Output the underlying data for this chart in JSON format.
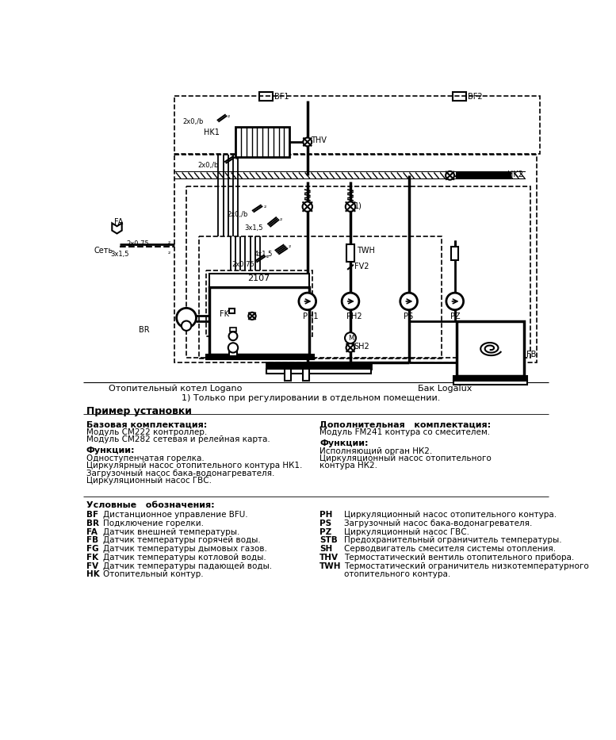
{
  "bg_color": "#ffffff",
  "fig_width": 7.77,
  "fig_height": 9.33,
  "caption_boiler": "Отопительный котел Logano",
  "caption_tank": "Бак Logalux",
  "note": "1) Только при регулировании в отдельном помещении.",
  "section_title": "Пример установки",
  "base_title": "Базовая комплектация:",
  "base_line1": "Модуль СМ222 контроллер.",
  "base_line2": "Модуль СМ282 сетевая и релейная карта.",
  "func1_title": "Функции:",
  "func1_lines": [
    "Одноступенчатая горелка.",
    "Циркулярный насос отопительного контура НК1.",
    "Загрузочный насос бака-водонагревателя.",
    "Циркуляционный насос ГВС."
  ],
  "addl_title": "Дополнительная   комплектация:",
  "addl_line1": "Модуль FM241 контура со смесителем.",
  "func2_title": "Функции:",
  "func2_lines": [
    "Исполняющий орган НК2.",
    "Циркуляционный насос отопительного",
    "контура НК2."
  ],
  "legend_title": "Условные   обозначения:",
  "legend_left": [
    [
      "BF",
      "Дистанционное управление BFU."
    ],
    [
      "BR",
      "Подключение горелки."
    ],
    [
      "FA",
      "Датчик внешней температуры."
    ],
    [
      "FB",
      "Датчик температуры горячей воды."
    ],
    [
      "FG",
      "Датчик температуры дымовых газов."
    ],
    [
      "FK",
      "Датчик температуры котловой воды."
    ],
    [
      "FV",
      "Датчик температуры падающей воды."
    ],
    [
      "HK",
      "Отопительный контур."
    ]
  ],
  "legend_right": [
    [
      "PH",
      "Циркуляционный насос отопительного контура."
    ],
    [
      "PS",
      "Загрузочный насос бака-водонагревателя."
    ],
    [
      "PZ",
      "Циркуляционный насос ГВС."
    ],
    [
      "STB",
      "Предохранительный ограничитель температуры."
    ],
    [
      "SH",
      "Серводвигатель смесителя системы отопления."
    ],
    [
      "THV",
      "Термостатический вентиль отопительного прибора."
    ],
    [
      "TWH",
      "Термостатический ограничитель низкотемпературного"
    ],
    [
      "",
      "отопительного контура."
    ]
  ]
}
